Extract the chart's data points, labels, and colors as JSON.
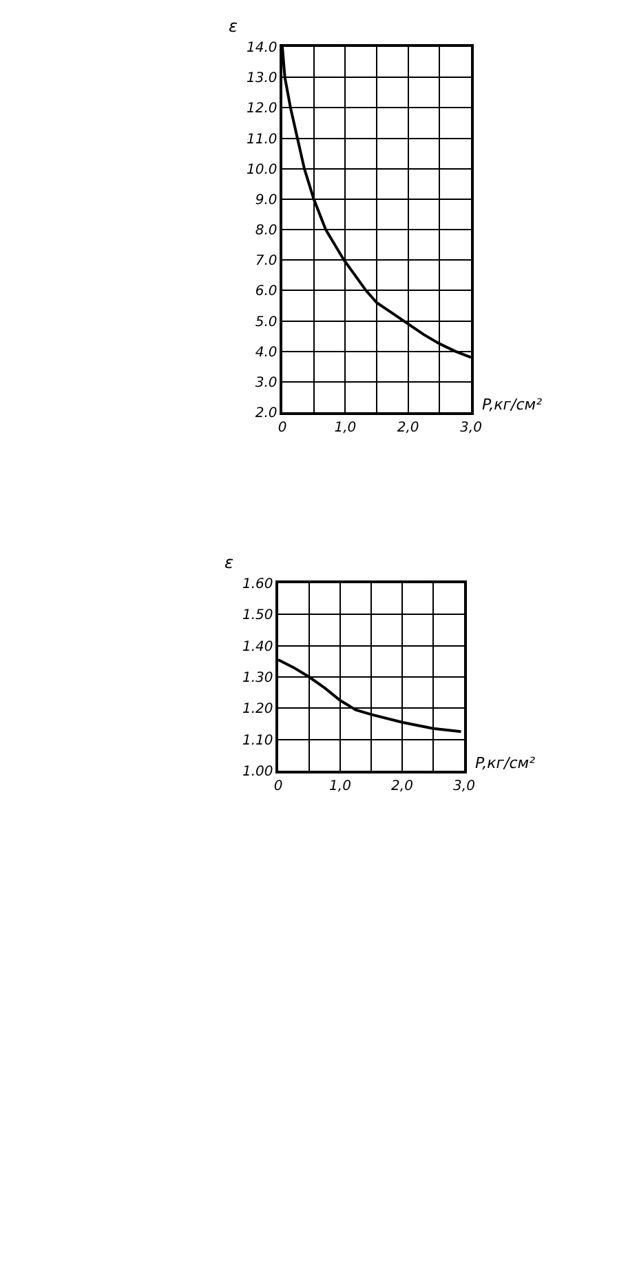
{
  "chart_data": [
    {
      "type": "line",
      "ylabel": "ε",
      "xlabel": "P,кг/см²",
      "color": "#000000",
      "line_style": "solid",
      "grid": true,
      "x": [
        0,
        0.04,
        0.13,
        0.24,
        0.35,
        0.5,
        0.69,
        0.98,
        1.33,
        1.5,
        1.75,
        2.0,
        2.25,
        2.5,
        2.75,
        3.0
      ],
      "values": [
        14.0,
        13.0,
        12.0,
        11.0,
        10.0,
        9.0,
        8.0,
        7.0,
        6.0,
        5.6,
        5.25,
        4.9,
        4.55,
        4.25,
        4.0,
        3.8
      ],
      "xlim": [
        0,
        3.0
      ],
      "xticks": [
        0,
        {
          "value": 0.5,
          "label": null
        },
        {
          "value": 1,
          "label": "1,0"
        },
        {
          "value": 1.5,
          "label": null
        },
        {
          "value": 2,
          "label": "2,0"
        },
        {
          "value": 2.5,
          "label": null
        },
        {
          "value": 3,
          "label": "3,0"
        }
      ],
      "ylim": [
        2,
        14
      ],
      "yticks": [
        {
          "value": 2,
          "label": "2.0"
        },
        {
          "value": 3,
          "label": "3.0"
        },
        {
          "value": 4,
          "label": "4.0"
        },
        {
          "value": 5,
          "label": "5.0"
        },
        {
          "value": 6,
          "label": "6.0"
        },
        {
          "value": 7,
          "label": "7.0"
        },
        {
          "value": 8,
          "label": "8.0"
        },
        {
          "value": 9,
          "label": "9.0"
        },
        {
          "value": 10,
          "label": "10.0"
        },
        {
          "value": 11,
          "label": "11.0"
        },
        {
          "value": 12,
          "label": "12.0"
        },
        {
          "value": 13,
          "label": "13.0"
        },
        {
          "value": 14,
          "label": "14.0"
        }
      ]
    },
    {
      "type": "line",
      "ylabel": "ε",
      "xlabel": "P,кг/см²",
      "color": "#000000",
      "line_style": "solid",
      "grid": true,
      "x": [
        0,
        0.25,
        0.5,
        0.75,
        1.0,
        1.25,
        1.5,
        2.0,
        2.5,
        2.95
      ],
      "values": [
        1.355,
        1.33,
        1.3,
        1.265,
        1.225,
        1.195,
        1.18,
        1.155,
        1.135,
        1.125
      ],
      "xlim": [
        0,
        3.0
      ],
      "xticks": [
        0,
        {
          "value": 0.5,
          "label": null
        },
        {
          "value": 1,
          "label": "1,0"
        },
        {
          "value": 1.5,
          "label": null
        },
        {
          "value": 2,
          "label": "2,0"
        },
        {
          "value": 2.5,
          "label": null
        },
        {
          "value": 3,
          "label": "3,0"
        }
      ],
      "ylim": [
        1.0,
        1.6
      ],
      "yticks": [
        {
          "value": 1.0,
          "label": "1.00"
        },
        {
          "value": 1.1,
          "label": "1.10"
        },
        {
          "value": 1.2,
          "label": "1.20"
        },
        {
          "value": 1.3,
          "label": "1.30"
        },
        {
          "value": 1.4,
          "label": "1.40"
        },
        {
          "value": 1.5,
          "label": "1.50"
        },
        {
          "value": 1.6,
          "label": "1.60"
        }
      ]
    }
  ]
}
